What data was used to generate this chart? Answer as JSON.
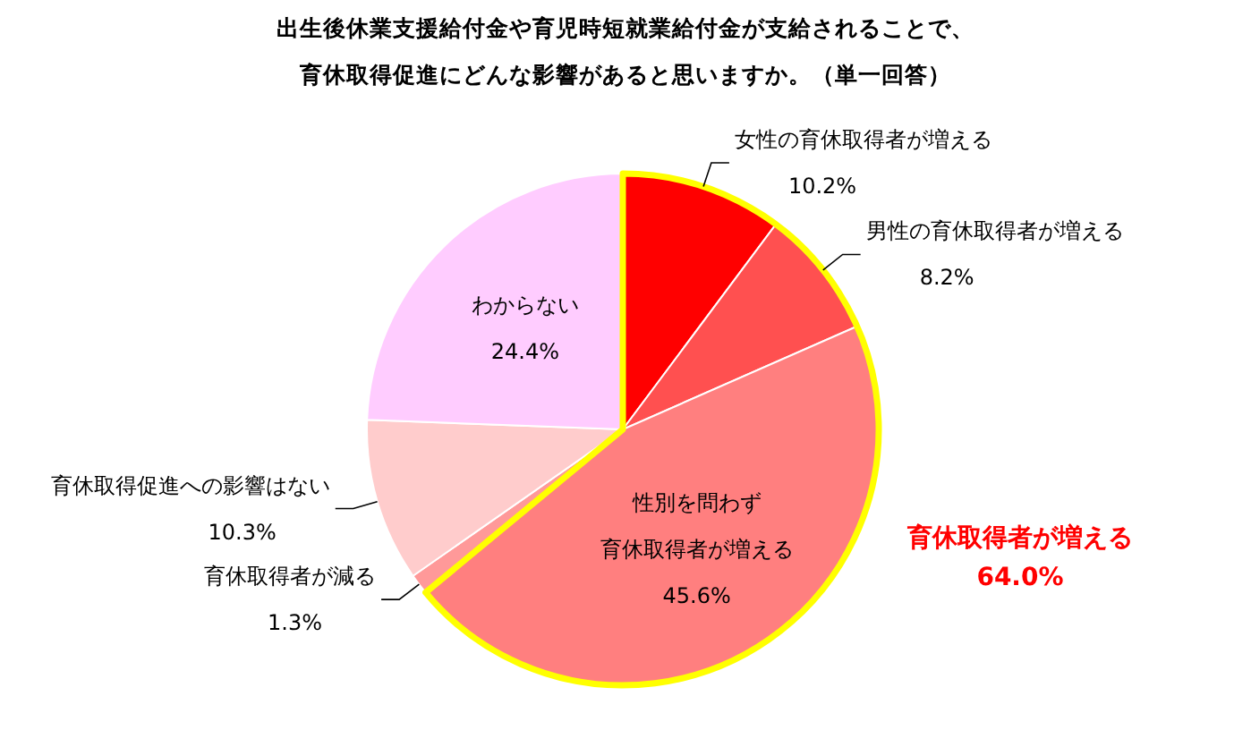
{
  "chart_data": {
    "type": "pie",
    "title": "出生後休業支援給付金や育児時短就業給付金が支給されることで、育休取得促進にどんな影響があると思いますか。（単一回答）",
    "categories": [
      "女性の育休取得者が増える",
      "男性の育休取得者が増える",
      "性別を問わず育休取得者が増える",
      "育休取得者が減る",
      "育休取得促進への影響はない",
      "わからない"
    ],
    "values": [
      10.2,
      8.2,
      45.6,
      1.3,
      10.3,
      24.4
    ],
    "value_labels": [
      "10.2%",
      "8.2%",
      "45.6%",
      "1.3%",
      "10.3%",
      "24.4%"
    ],
    "colors": [
      "#ff0000",
      "#ff5050",
      "#ff7f7f",
      "#ff9999",
      "#ffcccc",
      "#ffccff"
    ],
    "annotations": [
      "育休取得者が増える\n64.0%"
    ]
  }
}
